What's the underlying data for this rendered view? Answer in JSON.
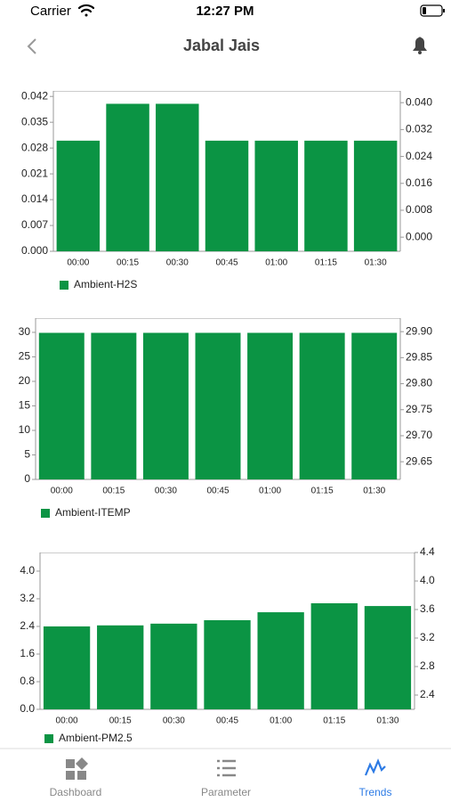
{
  "status_bar": {
    "carrier": "Carrier",
    "time": "12:27 PM"
  },
  "header": {
    "title": "Jabal Jais"
  },
  "charts": [
    {
      "type": "bar",
      "categories": [
        "00:00",
        "00:15",
        "00:30",
        "00:45",
        "01:00",
        "01:15",
        "01:30"
      ],
      "series": [
        {
          "name": "Ambient-H2S",
          "color": "#0b9444",
          "values": [
            0.03,
            0.04,
            0.04,
            0.03,
            0.03,
            0.03,
            0.03
          ]
        }
      ],
      "ylim": [
        0,
        0.0435
      ],
      "yticks": [
        {
          "value": 0,
          "label": "0.000"
        },
        0.007,
        0.014,
        0.021,
        0.028,
        0.035,
        0.042
      ],
      "y2lim": [
        -0.0042,
        0.0435
      ],
      "y2ticks": [
        {
          "value": 0,
          "label": "0.000"
        },
        0.008,
        0.016,
        0.024,
        0.032,
        {
          "value": 0.04,
          "label": "0.040"
        }
      ]
    },
    {
      "type": "bar",
      "categories": [
        "00:00",
        "00:15",
        "00:30",
        "00:45",
        "01:00",
        "01:15",
        "01:30"
      ],
      "series": [
        {
          "name": "Ambient-ITEMP",
          "color": "#0b9444",
          "values": [
            29.9,
            29.9,
            29.9,
            29.9,
            29.9,
            29.9,
            29.9
          ]
        }
      ],
      "ylim": [
        0,
        32.9
      ],
      "yticks": [
        0,
        5,
        10,
        15,
        20,
        25,
        30
      ],
      "y2lim": [
        29.616,
        29.926
      ],
      "y2ticks": [
        29.65,
        {
          "value": 29.7,
          "label": "29.70"
        },
        29.75,
        {
          "value": 29.8,
          "label": "29.80"
        },
        29.85,
        {
          "value": 29.9,
          "label": "29.90"
        }
      ]
    },
    {
      "type": "bar",
      "categories": [
        "00:00",
        "00:15",
        "00:30",
        "00:45",
        "01:00",
        "01:15",
        "01:30"
      ],
      "series": [
        {
          "name": "Ambient-PM2.5",
          "color": "#0b9444",
          "values": [
            2.4,
            2.43,
            2.48,
            2.58,
            2.81,
            3.07,
            2.99
          ]
        }
      ],
      "ylim": [
        0,
        4.54
      ],
      "yticks": [
        {
          "value": 0,
          "label": "0.0"
        },
        0.8,
        1.6,
        2.4,
        3.2,
        {
          "value": 4,
          "label": "4.0"
        }
      ],
      "y2lim": [
        2.2,
        4.4
      ],
      "y2ticks": [
        2.4,
        2.8,
        3.2,
        3.6,
        {
          "value": 4,
          "label": "4.0"
        },
        4.4
      ]
    }
  ],
  "tab_bar": {
    "tabs": [
      "Dashboard",
      "Parameter",
      "Trends"
    ]
  }
}
